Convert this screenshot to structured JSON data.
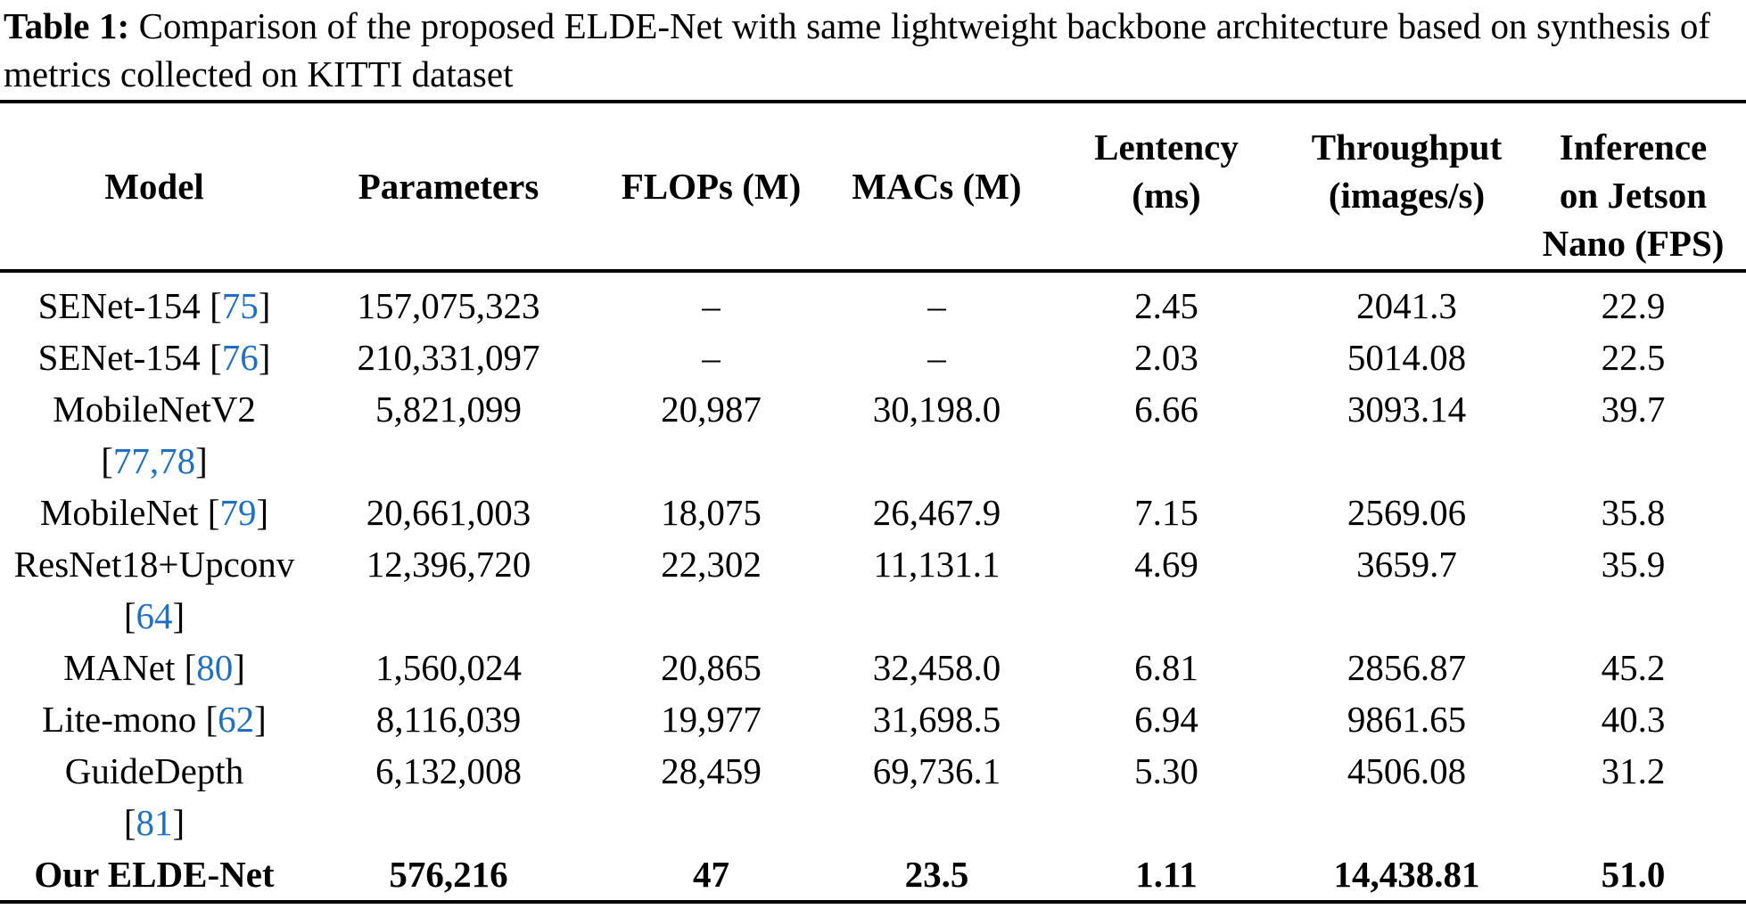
{
  "caption": {
    "label": "Table 1:",
    "text": "Comparison of the proposed ELDE-Net with same lightweight backbone architecture based on synthesis of metrics collected on KITTI dataset"
  },
  "colors": {
    "citation_link": "#1f6fc5",
    "text": "#000000",
    "rule": "#000000",
    "background": "#ffffff"
  },
  "table": {
    "brackets": {
      "open": "[",
      "close": "]"
    },
    "columns": [
      {
        "id": "model",
        "lines": [
          "Model"
        ]
      },
      {
        "id": "parameters",
        "lines": [
          "Parameters"
        ]
      },
      {
        "id": "flops",
        "lines": [
          "FLOPs (M)"
        ]
      },
      {
        "id": "macs",
        "lines": [
          "MACs (M)"
        ]
      },
      {
        "id": "latency",
        "lines": [
          "Lentency",
          "(ms)"
        ]
      },
      {
        "id": "throughput",
        "lines": [
          "Throughput",
          "(images/s)"
        ]
      },
      {
        "id": "inference",
        "lines": [
          "Inference",
          "on Jetson",
          "Nano (FPS)"
        ]
      }
    ],
    "rows": [
      {
        "model": {
          "name": "SENet-154",
          "ref": "75",
          "ref_on_new_line": false
        },
        "values": [
          "157,075,323",
          "–",
          "–",
          "2.45",
          "2041.3",
          "22.9"
        ],
        "bold": false
      },
      {
        "model": {
          "name": "SENet-154",
          "ref": "76",
          "ref_on_new_line": false
        },
        "values": [
          "210,331,097",
          "–",
          "–",
          "2.03",
          "5014.08",
          "22.5"
        ],
        "bold": false
      },
      {
        "model": {
          "name": "MobileNetV2",
          "ref": "77,78",
          "ref_on_new_line": true
        },
        "values": [
          "5,821,099",
          "20,987",
          "30,198.0",
          "6.66",
          "3093.14",
          "39.7"
        ],
        "bold": false
      },
      {
        "model": {
          "name": "MobileNet",
          "ref": "79",
          "ref_on_new_line": false
        },
        "values": [
          "20,661,003",
          "18,075",
          "26,467.9",
          "7.15",
          "2569.06",
          "35.8"
        ],
        "bold": false
      },
      {
        "model": {
          "name": "ResNet18+Upconv",
          "ref": "64",
          "ref_on_new_line": true
        },
        "values": [
          "12,396,720",
          "22,302",
          "11,131.1",
          "4.69",
          "3659.7",
          "35.9"
        ],
        "bold": false
      },
      {
        "model": {
          "name": "MANet",
          "ref": "80",
          "ref_on_new_line": false
        },
        "values": [
          "1,560,024",
          "20,865",
          "32,458.0",
          "6.81",
          "2856.87",
          "45.2"
        ],
        "bold": false
      },
      {
        "model": {
          "name": "Lite-mono",
          "ref": "62",
          "ref_on_new_line": false
        },
        "values": [
          "8,116,039",
          "19,977",
          "31,698.5",
          "6.94",
          "9861.65",
          "40.3"
        ],
        "bold": false
      },
      {
        "model": {
          "name": "GuideDepth",
          "ref": "81",
          "ref_on_new_line": true
        },
        "values": [
          "6,132,008",
          "28,459",
          "69,736.1",
          "5.30",
          "4506.08",
          "31.2"
        ],
        "bold": false
      },
      {
        "model": {
          "name": "Our ELDE-Net",
          "ref": null,
          "ref_on_new_line": false
        },
        "values": [
          "576,216",
          "47",
          "23.5",
          "1.11",
          "14,438.81",
          "51.0"
        ],
        "bold": true
      }
    ]
  }
}
